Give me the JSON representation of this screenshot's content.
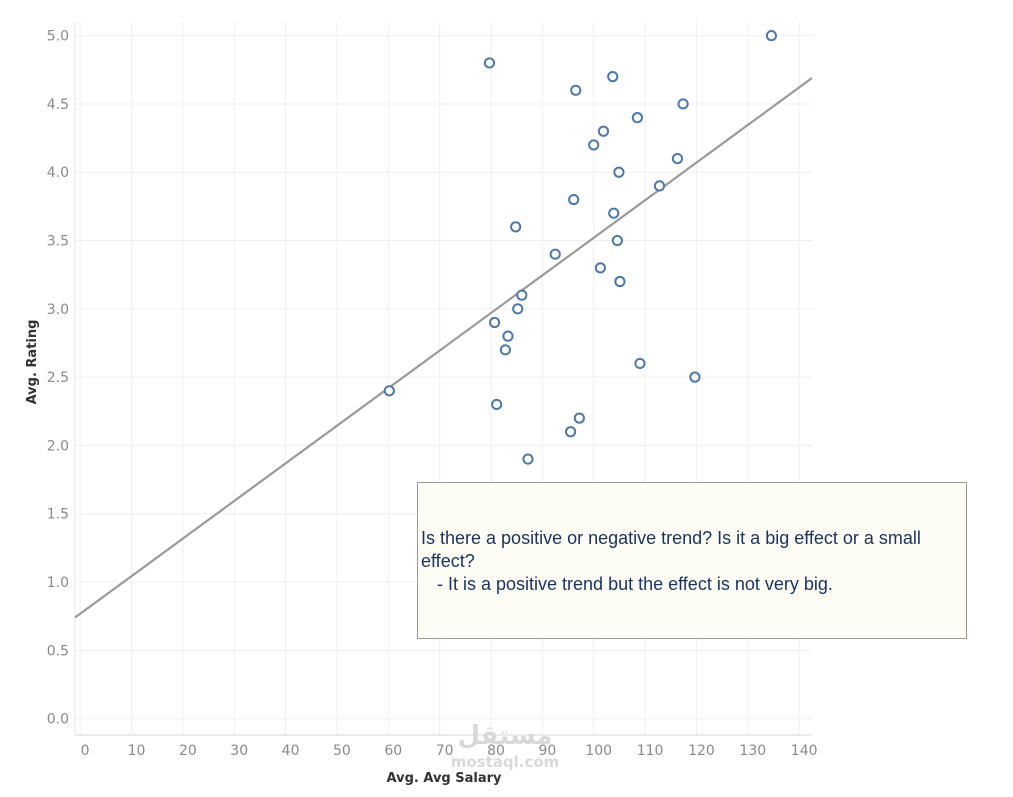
{
  "chart_data": {
    "type": "scatter",
    "title": "",
    "xlabel": "Avg. Avg Salary",
    "ylabel": "Avg. Rating",
    "xlim": [
      -1,
      142.5
    ],
    "ylim": [
      -0.12,
      5.1
    ],
    "x_ticks": [
      0,
      10,
      20,
      30,
      40,
      50,
      60,
      70,
      80,
      90,
      100,
      110,
      120,
      130,
      140
    ],
    "x_tick_labels": [
      "0",
      "10",
      "20",
      "30",
      "40",
      "50",
      "60",
      "70",
      "80",
      "90",
      "100",
      "110",
      "120",
      "130",
      "140"
    ],
    "y_ticks": [
      0,
      0.5,
      1,
      1.5,
      2,
      2.5,
      3,
      3.5,
      4,
      4.5,
      5
    ],
    "y_tick_labels": [
      "0.0",
      "0.5",
      "1.0",
      "1.5",
      "2.0",
      "2.5",
      "3.0",
      "3.5",
      "4.0",
      "4.5",
      "5.0"
    ],
    "grid": true,
    "marker_color": "#4e79a7",
    "trend_color": "#9a9a9a",
    "series": [
      {
        "name": "Avg. Rating",
        "points": [
          {
            "x": 60.2,
            "y": 2.4
          },
          {
            "x": 79.7,
            "y": 4.8
          },
          {
            "x": 80.7,
            "y": 2.9
          },
          {
            "x": 81.1,
            "y": 2.3
          },
          {
            "x": 82.8,
            "y": 2.7
          },
          {
            "x": 83.3,
            "y": 2.8
          },
          {
            "x": 84.8,
            "y": 3.6
          },
          {
            "x": 85.2,
            "y": 3.0
          },
          {
            "x": 86.0,
            "y": 3.1
          },
          {
            "x": 87.2,
            "y": 1.9
          },
          {
            "x": 92.5,
            "y": 3.4
          },
          {
            "x": 95.5,
            "y": 2.1
          },
          {
            "x": 96.1,
            "y": 3.8
          },
          {
            "x": 96.5,
            "y": 4.6
          },
          {
            "x": 97.2,
            "y": 2.2
          },
          {
            "x": 100.0,
            "y": 4.2
          },
          {
            "x": 101.3,
            "y": 3.3
          },
          {
            "x": 101.9,
            "y": 4.3
          },
          {
            "x": 103.7,
            "y": 4.7
          },
          {
            "x": 103.9,
            "y": 3.7
          },
          {
            "x": 104.6,
            "y": 3.5
          },
          {
            "x": 104.9,
            "y": 4.0
          },
          {
            "x": 105.1,
            "y": 3.2
          },
          {
            "x": 108.5,
            "y": 4.4
          },
          {
            "x": 109.0,
            "y": 2.6
          },
          {
            "x": 112.8,
            "y": 3.9
          },
          {
            "x": 116.3,
            "y": 4.1
          },
          {
            "x": 117.4,
            "y": 4.5
          },
          {
            "x": 119.7,
            "y": 2.5
          },
          {
            "x": 134.6,
            "y": 5.0
          }
        ]
      }
    ],
    "trend_line": {
      "x": [
        -1,
        142.5
      ],
      "y": [
        0.74,
        4.69
      ]
    }
  },
  "annotation": {
    "question": "Is there a positive or negative trend? Is it a big effect or a small effect?",
    "answer": "- It is a positive trend but the effect is not very big."
  },
  "watermark": {
    "arabic": "مستقل",
    "latin": "mostaql.com"
  }
}
